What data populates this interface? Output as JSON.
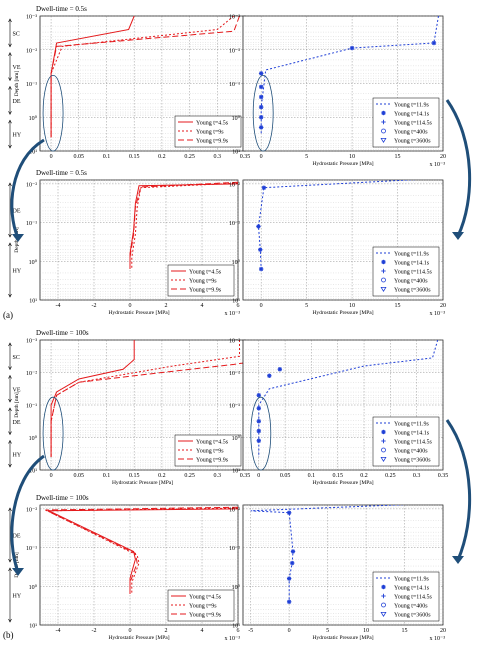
{
  "colors": {
    "red": "#e41a1c",
    "blue": "#1f3fd6",
    "ellipse": "#1f4e79",
    "arrow": "#1f4e79"
  },
  "panel_labels": [
    "(a)",
    "(b)"
  ],
  "chart_data": [
    {
      "id": "a-top-left",
      "type": "line",
      "log_y": true,
      "title": "Dwell-time = 0.5s",
      "xlabel": "",
      "ylabel": "Depth [nm]",
      "xlim": [
        -0.02,
        0.35
      ],
      "ylim": [
        -3,
        1
      ],
      "x_ticks": [
        "0",
        "0.05",
        "0.1",
        "0.15",
        "0.2",
        "0.25",
        "0.3",
        "0.35"
      ],
      "x_tick_values": [
        0,
        0.05,
        0.1,
        0.15,
        0.2,
        0.25,
        0.3,
        0.35
      ],
      "y_ticks": [
        "10⁻³",
        "10⁻²",
        "10⁻¹",
        "10⁰",
        "10¹"
      ],
      "zones": [
        "SC",
        "VE",
        "DE",
        "HY"
      ],
      "series": [
        {
          "name": "Young t=4.5s",
          "color": "red",
          "dash": "solid",
          "x": [
            0.15,
            0.14,
            0.01,
            0,
            0,
            0
          ],
          "y": [
            -3,
            -2.6,
            -2.2,
            -1.3,
            -0.5,
            0.6
          ]
        },
        {
          "name": "Young t=9s",
          "color": "red",
          "dash": "2,2",
          "x": [
            0.33,
            0.3,
            0.02,
            0,
            0,
            0
          ],
          "y": [
            -3,
            -2.6,
            -2.1,
            -1.3,
            -0.5,
            0.6
          ]
        },
        {
          "name": "Young t=9.9s",
          "color": "red",
          "dash": "6,3",
          "x": [
            0.34,
            0.33,
            0.01,
            0,
            0,
            0
          ],
          "y": [
            -3,
            -2.55,
            -2.1,
            -1.3,
            -0.5,
            0.6
          ]
        }
      ],
      "legend": "bottom-right",
      "ellipse": true
    },
    {
      "id": "a-top-right",
      "type": "line",
      "log_y": true,
      "title": "",
      "xlabel": "Hydrostatic Pressure [MPa]",
      "ylabel": "",
      "xlim": [
        -2,
        20
      ],
      "ylim": [
        -3,
        1
      ],
      "x_ticks": [
        "0",
        "5",
        "10",
        "15",
        "20"
      ],
      "x_tick_values": [
        0,
        5,
        10,
        15,
        20
      ],
      "x_exponent": "x 10⁻³",
      "y_ticks": [
        "10⁻³",
        "10⁻²",
        "10⁻¹",
        "10⁰",
        "10¹"
      ],
      "series": [
        {
          "name": "Young t=11.9s",
          "color": "blue",
          "dash": "2,2",
          "marker": "none",
          "x": [
            19.5,
            19,
            10,
            0.5,
            0,
            0
          ],
          "y": [
            -3,
            -2.2,
            -2.05,
            -1.4,
            -0.3,
            0.5
          ]
        },
        {
          "name": "Young t=14.1s",
          "color": "blue",
          "dash": "none",
          "marker": "star",
          "x": [
            10,
            19,
            0,
            0,
            0,
            0,
            0,
            0
          ],
          "y": [
            -2.05,
            -2.2,
            -1.3,
            -0.9,
            -0.6,
            -0.3,
            0,
            0.3
          ]
        },
        {
          "name": "Young t=114.5s",
          "color": "blue",
          "dash": "none",
          "marker": "plus",
          "x": [],
          "y": []
        },
        {
          "name": "Young t=400s",
          "color": "blue",
          "dash": "none",
          "marker": "circle",
          "x": [],
          "y": []
        },
        {
          "name": "Young t=3600s",
          "color": "blue",
          "dash": "none",
          "marker": "triangle",
          "x": [],
          "y": []
        }
      ],
      "legend": "bottom-right",
      "ellipse": true
    },
    {
      "id": "a-bottom-left",
      "type": "line",
      "log_y": true,
      "title": "Dwell-time = 0.5s",
      "xlabel": "Hydrostatic Pressure [MPa]",
      "ylabel": "Depth [nm]",
      "xlim": [
        -5,
        6
      ],
      "ylim": [
        -2.1,
        1
      ],
      "x_ticks": [
        "-4",
        "-2",
        "0",
        "2",
        "4",
        "6"
      ],
      "x_tick_values": [
        -4,
        -2,
        0,
        2,
        4,
        6
      ],
      "x_exponent": "x 10⁻³",
      "y_ticks": [
        "10⁻²",
        "10⁻¹",
        "10⁰",
        "10¹"
      ],
      "zones": [
        "DE",
        "HY"
      ],
      "series": [
        {
          "name": "Young t=4.5s",
          "color": "red",
          "dash": "solid",
          "x": [
            6,
            0.5,
            0.3,
            0.2,
            0,
            0
          ],
          "y": [
            -2.0,
            -1.95,
            -1.5,
            -0.8,
            -0.2,
            0.2
          ]
        },
        {
          "name": "Young t=9s",
          "color": "red",
          "dash": "2,2",
          "x": [
            6,
            0.6,
            0.4,
            0.3,
            0.1,
            0.1
          ],
          "y": [
            -2.02,
            -1.9,
            -1.4,
            -0.7,
            -0.1,
            0.2
          ]
        },
        {
          "name": "Young t=9.9s",
          "color": "red",
          "dash": "6,3",
          "x": [
            6,
            0.6,
            0.3,
            0.2,
            0,
            0
          ],
          "y": [
            -2.04,
            -1.92,
            -1.4,
            -0.7,
            -0.1,
            0.2
          ]
        }
      ],
      "legend": "bottom-right",
      "ellipse": false
    },
    {
      "id": "a-bottom-right",
      "type": "line",
      "log_y": true,
      "title": "",
      "xlabel": "Hydrostatic Pressure [MPa]",
      "ylabel": "",
      "xlim": [
        -2,
        20
      ],
      "ylim": [
        -2.1,
        1
      ],
      "x_ticks": [
        "0",
        "5",
        "10",
        "15",
        "20"
      ],
      "x_tick_values": [
        0,
        5,
        10,
        15,
        20
      ],
      "x_exponent": "x 10⁻³",
      "y_ticks": [
        "10⁻²",
        "10⁻¹",
        "10⁰",
        "10¹"
      ],
      "series": [
        {
          "name": "Young t=11.9s",
          "color": "blue",
          "dash": "2,2",
          "marker": "none",
          "x": [
            20,
            0.3,
            0,
            -0.3,
            -0.1,
            0
          ],
          "y": [
            -2.15,
            -1.9,
            -1.4,
            -0.9,
            -0.3,
            0.2
          ]
        },
        {
          "name": "Young t=14.1s",
          "color": "blue",
          "dash": "none",
          "marker": "star",
          "x": [
            0.3,
            -0.3,
            -0.1,
            0
          ],
          "y": [
            -1.9,
            -0.9,
            -0.3,
            0.2
          ]
        },
        {
          "name": "Young t=114.5s",
          "color": "blue",
          "dash": "none",
          "marker": "plus",
          "x": [],
          "y": []
        },
        {
          "name": "Young t=400s",
          "color": "blue",
          "dash": "none",
          "marker": "circle",
          "x": [],
          "y": []
        },
        {
          "name": "Young t=3600s",
          "color": "blue",
          "dash": "none",
          "marker": "triangle",
          "x": [],
          "y": []
        }
      ],
      "legend": "bottom-right",
      "ellipse": false
    },
    {
      "id": "b-top-left",
      "type": "line",
      "log_y": true,
      "title": "Dwell-time = 100s",
      "xlabel": "Hydrostatic Pressure [MPa]",
      "ylabel": "Depth [nm]",
      "xlim": [
        -0.02,
        0.35
      ],
      "ylim": [
        -3,
        1
      ],
      "x_ticks": [
        "0",
        "0.05",
        "0.1",
        "0.15",
        "0.2",
        "0.25",
        "0.3",
        "0.35"
      ],
      "x_tick_values": [
        0,
        0.05,
        0.1,
        0.15,
        0.2,
        0.25,
        0.3,
        0.35
      ],
      "y_ticks": [
        "10⁻³",
        "10⁻²",
        "10⁻¹",
        "10⁰",
        "10¹"
      ],
      "zones": [
        "SC",
        "VE",
        "DE",
        "HY"
      ],
      "series": [
        {
          "name": "Young t=4.5s",
          "color": "red",
          "dash": "solid",
          "x": [
            0.15,
            0.15,
            0.13,
            0.05,
            0.01,
            0,
            0,
            0
          ],
          "y": [
            -3,
            -2.4,
            -2.1,
            -1.8,
            -1.4,
            -1.0,
            -0.5,
            0.6
          ]
        },
        {
          "name": "Young t=9s",
          "color": "red",
          "dash": "2,2",
          "x": [
            0.34,
            0.34,
            0.22,
            0.05,
            0.01,
            0,
            0
          ],
          "y": [
            -3,
            -2.5,
            -2.2,
            -1.7,
            -1.3,
            -0.5,
            0.6
          ]
        },
        {
          "name": "Young t=9.9s",
          "color": "red",
          "dash": "6,3",
          "x": [
            0.35,
            0.33,
            0.2,
            0.05,
            0.01,
            0,
            0
          ],
          "y": [
            -2.3,
            -2.25,
            -2.0,
            -1.7,
            -1.3,
            -0.5,
            0.6
          ]
        }
      ],
      "legend": "bottom-right",
      "ellipse": true
    },
    {
      "id": "b-top-right",
      "type": "line",
      "log_y": true,
      "title": "",
      "xlabel": "Hydrostatic Pressure [MPa]",
      "ylabel": "",
      "xlim": [
        -0.03,
        0.35
      ],
      "ylim": [
        -3,
        1
      ],
      "x_ticks": [
        "0",
        "0.05",
        "0.1",
        "0.15",
        "0.2",
        "0.25",
        "0.3",
        "0.35"
      ],
      "x_tick_values": [
        0,
        0.05,
        0.1,
        0.15,
        0.2,
        0.25,
        0.3,
        0.35
      ],
      "y_ticks": [
        "10⁻³",
        "10⁻²",
        "10⁻¹",
        "10⁰",
        "10¹"
      ],
      "series": [
        {
          "name": "Young t=11.9s",
          "color": "blue",
          "dash": "2,2",
          "marker": "none",
          "x": [
            0.34,
            0.33,
            0.2,
            0.02,
            0,
            0,
            0
          ],
          "y": [
            -3,
            -2.45,
            -2.2,
            -1.5,
            -1.0,
            -0.5,
            0.6
          ]
        },
        {
          "name": "Young t=14.1s",
          "color": "blue",
          "dash": "none",
          "marker": "star",
          "x": [
            0.02,
            0.04,
            0,
            0,
            0,
            0,
            0
          ],
          "y": [
            -1.9,
            -2.1,
            -1.3,
            -0.9,
            -0.5,
            -0.2,
            0.1
          ]
        },
        {
          "name": "Young t=114.5s",
          "color": "blue",
          "dash": "none",
          "marker": "plus",
          "x": [],
          "y": []
        },
        {
          "name": "Young t=400s",
          "color": "blue",
          "dash": "none",
          "marker": "circle",
          "x": [],
          "y": []
        },
        {
          "name": "Young t=3600s",
          "color": "blue",
          "dash": "none",
          "marker": "triangle",
          "x": [],
          "y": []
        }
      ],
      "legend": "bottom-right",
      "ellipse": true
    },
    {
      "id": "b-bottom-left",
      "type": "line",
      "log_y": true,
      "title": "Dwell-time = 100s",
      "xlabel": "Hydrostatic Pressure [MPa]",
      "ylabel": "Depth [nm]",
      "xlim": [
        -5,
        6
      ],
      "ylim": [
        -2.1,
        1
      ],
      "x_ticks": [
        "-4",
        "-2",
        "0",
        "2",
        "4",
        "6"
      ],
      "x_tick_values": [
        -4,
        -2,
        0,
        2,
        4,
        6
      ],
      "x_exponent": "x 10⁻³",
      "y_ticks": [
        "10⁻²",
        "10⁻¹",
        "10⁰",
        "10¹"
      ],
      "zones": [
        "DE",
        "HY"
      ],
      "series": [
        {
          "name": "Young t=4.5s",
          "color": "red",
          "dash": "solid",
          "x": [
            6,
            -4.5,
            0.2,
            0.3,
            0,
            0
          ],
          "y": [
            -2.0,
            -1.95,
            -0.9,
            -0.7,
            -0.2,
            0.2
          ]
        },
        {
          "name": "Young t=9s",
          "color": "red",
          "dash": "2,2",
          "x": [
            6,
            -4.6,
            0.4,
            0.5,
            0.1,
            0.1
          ],
          "y": [
            -2.02,
            -1.95,
            -0.8,
            -0.6,
            -0.1,
            0.2
          ]
        },
        {
          "name": "Young t=9.9s",
          "color": "red",
          "dash": "6,3",
          "x": [
            6,
            -4.7,
            0.3,
            0.4,
            0,
            0
          ],
          "y": [
            -2.04,
            -1.97,
            -0.85,
            -0.6,
            -0.1,
            0.2
          ]
        }
      ],
      "legend": "bottom-right",
      "ellipse": false
    },
    {
      "id": "b-bottom-right",
      "type": "line",
      "log_y": true,
      "title": "",
      "xlabel": "Hydrostatic Pressure [MPa]",
      "ylabel": "",
      "xlim": [
        -6,
        20
      ],
      "ylim": [
        -2.1,
        1
      ],
      "x_ticks": [
        "-5",
        "0",
        "5",
        "10",
        "15",
        "20"
      ],
      "x_tick_values": [
        -5,
        0,
        5,
        10,
        15,
        20
      ],
      "x_exponent": "x 10⁻³",
      "y_ticks": [
        "10⁻²",
        "10⁻¹",
        "10⁰",
        "10¹"
      ],
      "series": [
        {
          "name": "Young t=11.9s",
          "color": "blue",
          "dash": "2,2",
          "marker": "none",
          "x": [
            20,
            -5,
            0,
            0.5,
            0.4,
            0,
            0
          ],
          "y": [
            -2.15,
            -1.95,
            -1.9,
            -0.9,
            -0.6,
            -0.2,
            0.4
          ]
        },
        {
          "name": "Young t=14.1s",
          "color": "blue",
          "dash": "none",
          "marker": "star",
          "x": [
            0,
            0.5,
            0.4,
            0,
            0
          ],
          "y": [
            -1.9,
            -0.9,
            -0.6,
            -0.2,
            0.4
          ]
        },
        {
          "name": "Young t=114.5s",
          "color": "blue",
          "dash": "none",
          "marker": "plus",
          "x": [],
          "y": []
        },
        {
          "name": "Young t=400s",
          "color": "blue",
          "dash": "none",
          "marker": "circle",
          "x": [],
          "y": []
        },
        {
          "name": "Young t=3600s",
          "color": "blue",
          "dash": "none",
          "marker": "triangle",
          "x": [],
          "y": []
        }
      ],
      "legend": "bottom-right",
      "ellipse": false
    }
  ]
}
